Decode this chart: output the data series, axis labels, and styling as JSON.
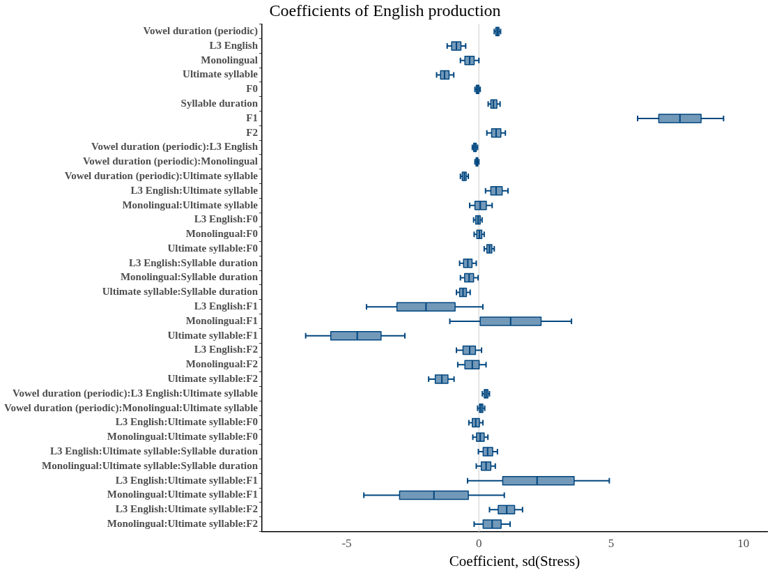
{
  "chart_data": {
    "type": "box",
    "orientation": "horizontal",
    "title": "Coefficients of English production",
    "xlabel": "Coefficient, sd(Stress)",
    "categories": [
      "Vowel duration (periodic)",
      "L3 English",
      "Monolingual",
      "Ultimate syllable",
      "F0",
      "Syllable duration",
      "F1",
      "F2",
      "Vowel duration (periodic):L3 English",
      "Vowel duration (periodic):Monolingual",
      "Vowel duration (periodic):Ultimate syllable",
      "L3 English:Ultimate syllable",
      "Monolingual:Ultimate syllable",
      "L3 English:F0",
      "Monolingual:F0",
      "Ultimate syllable:F0",
      "L3 English:Syllable duration",
      "Monolingual:Syllable duration",
      "Ultimate syllable:Syllable duration",
      "L3 English:F1",
      "Monolingual:F1",
      "Ultimate syllable:F1",
      "L3 English:F2",
      "Monolingual:F2",
      "Ultimate syllable:F2",
      "Vowel duration (periodic):L3 English:Ultimate syllable",
      "Vowel duration (periodic):Monolingual:Ultimate syllable",
      "L3 English:Ultimate syllable:F0",
      "Monolingual:Ultimate syllable:F0",
      "L3 English:Ultimate syllable:Syllable duration",
      "Monolingual:Ultimate syllable:Syllable duration",
      "L3 English:Ultimate syllable:F1",
      "Monolingual:Ultimate syllable:F1",
      "L3 English:Ultimate syllable:F2",
      "Monolingual:Ultimate syllable:F2"
    ],
    "color": "#00467f",
    "boxes": [
      {
        "low": 0.58,
        "q1": 0.64,
        "median": 0.7,
        "q3": 0.76,
        "high": 0.82
      },
      {
        "low": -1.2,
        "q1": -1.03,
        "median": -0.85,
        "q3": -0.68,
        "high": -0.5
      },
      {
        "low": -0.7,
        "q1": -0.53,
        "median": -0.35,
        "q3": -0.18,
        "high": 0
      },
      {
        "low": -1.6,
        "q1": -1.45,
        "median": -1.3,
        "q3": -1.13,
        "high": -0.95
      },
      {
        "low": -0.15,
        "q1": -0.1,
        "median": -0.05,
        "q3": 0,
        "high": 0.05
      },
      {
        "low": 0.35,
        "q1": 0.45,
        "median": 0.55,
        "q3": 0.68,
        "high": 0.8
      },
      {
        "low": 6.0,
        "q1": 6.8,
        "median": 7.6,
        "q3": 8.4,
        "high": 9.25
      },
      {
        "low": 0.3,
        "q1": 0.48,
        "median": 0.65,
        "q3": 0.83,
        "high": 1.0
      },
      {
        "low": -0.25,
        "q1": -0.2,
        "median": -0.15,
        "q3": -0.1,
        "high": -0.05
      },
      {
        "low": -0.15,
        "q1": -0.11,
        "median": -0.07,
        "q3": -0.04,
        "high": 0
      },
      {
        "low": -0.7,
        "q1": -0.63,
        "median": -0.55,
        "q3": -0.48,
        "high": -0.4
      },
      {
        "low": 0.25,
        "q1": 0.45,
        "median": 0.65,
        "q3": 0.88,
        "high": 1.1
      },
      {
        "low": -0.35,
        "q1": -0.15,
        "median": 0.05,
        "q3": 0.28,
        "high": 0.5
      },
      {
        "low": -0.2,
        "q1": -0.12,
        "median": -0.03,
        "q3": 0.05,
        "high": 0.12
      },
      {
        "low": -0.18,
        "q1": -0.08,
        "median": 0.02,
        "q3": 0.11,
        "high": 0.2
      },
      {
        "low": 0.2,
        "q1": 0.3,
        "median": 0.4,
        "q3": 0.49,
        "high": 0.58
      },
      {
        "low": -0.73,
        "q1": -0.58,
        "median": -0.42,
        "q3": -0.26,
        "high": -0.1
      },
      {
        "low": -0.7,
        "q1": -0.54,
        "median": -0.37,
        "q3": -0.2,
        "high": -0.03
      },
      {
        "low": -0.85,
        "q1": -0.73,
        "median": -0.6,
        "q3": -0.47,
        "high": -0.33
      },
      {
        "low": -4.25,
        "q1": -3.1,
        "median": -2.0,
        "q3": -0.9,
        "high": 0.15
      },
      {
        "low": -1.1,
        "q1": 0.05,
        "median": 1.2,
        "q3": 2.35,
        "high": 3.5
      },
      {
        "low": -6.55,
        "q1": -5.6,
        "median": -4.6,
        "q3": -3.7,
        "high": -2.8
      },
      {
        "low": -0.85,
        "q1": -0.6,
        "median": -0.35,
        "q3": -0.13,
        "high": 0.1
      },
      {
        "low": -0.8,
        "q1": -0.53,
        "median": -0.25,
        "q3": 0.01,
        "high": 0.27
      },
      {
        "low": -1.9,
        "q1": -1.65,
        "median": -1.4,
        "q3": -1.17,
        "high": -0.94
      },
      {
        "low": 0.13,
        "q1": 0.2,
        "median": 0.27,
        "q3": 0.34,
        "high": 0.4
      },
      {
        "low": -0.05,
        "q1": 0.02,
        "median": 0.08,
        "q3": 0.15,
        "high": 0.22
      },
      {
        "low": -0.38,
        "q1": -0.25,
        "median": -0.12,
        "q3": 0.02,
        "high": 0.15
      },
      {
        "low": -0.23,
        "q1": -0.09,
        "median": 0.05,
        "q3": 0.2,
        "high": 0.34
      },
      {
        "low": -0.02,
        "q1": 0.16,
        "median": 0.33,
        "q3": 0.52,
        "high": 0.7
      },
      {
        "low": -0.1,
        "q1": 0.09,
        "median": 0.27,
        "q3": 0.45,
        "high": 0.62
      },
      {
        "low": -0.43,
        "q1": 0.9,
        "median": 2.2,
        "q3": 3.6,
        "high": 4.93
      },
      {
        "low": -4.35,
        "q1": -3.0,
        "median": -1.7,
        "q3": -0.4,
        "high": 0.96
      },
      {
        "low": 0.4,
        "q1": 0.73,
        "median": 1.05,
        "q3": 1.35,
        "high": 1.65
      },
      {
        "low": -0.18,
        "q1": 0.16,
        "median": 0.5,
        "q3": 0.84,
        "high": 1.18
      }
    ],
    "xlim": [
      -8.2,
      10.9
    ],
    "xticks": [
      -5,
      0,
      5,
      10
    ],
    "ref_lines": [
      {
        "axis": "x",
        "value": 0,
        "color": "#e3e3e3"
      }
    ],
    "grid": false,
    "legend": false
  }
}
